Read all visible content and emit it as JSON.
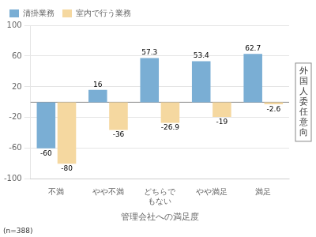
{
  "chart_data": {
    "type": "bar",
    "categories": [
      "不満",
      "やや不満",
      "どちらで\nもない",
      "やや満足",
      "満足"
    ],
    "series": [
      {
        "name": "清掛業務",
        "color": "#7aaed4",
        "values": [
          -60,
          16,
          57.3,
          53.4,
          62.7
        ]
      },
      {
        "name": "室内で行う業務",
        "color": "#f5d8a0",
        "values": [
          -80,
          -36,
          -26.9,
          -19,
          -2.6
        ]
      }
    ],
    "xlabel": "管理会社への満足度",
    "ylabel": "外\n国\n人\n委\n任\n意\n向",
    "annotations": [
      "(n=388)"
    ],
    "ylim": [
      -100,
      100
    ],
    "yticks": [
      -100,
      -60,
      -20,
      20,
      60,
      100
    ],
    "grid": true,
    "legend": "upper left",
    "data_labels": true
  }
}
